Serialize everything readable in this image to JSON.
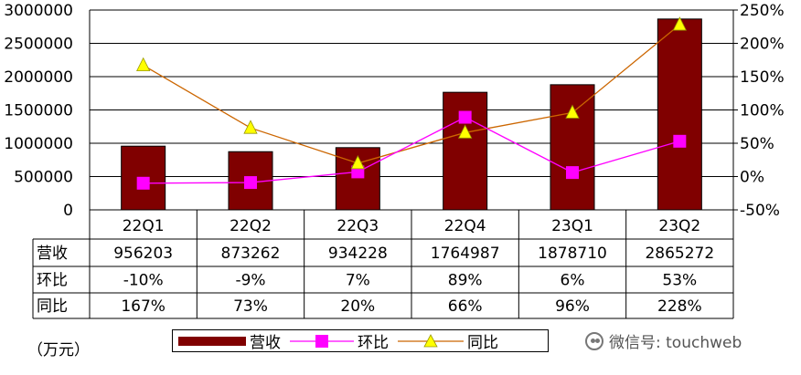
{
  "chart_data": {
    "type": "bar",
    "categories": [
      "22Q1",
      "22Q2",
      "22Q3",
      "22Q4",
      "23Q1",
      "23Q2"
    ],
    "series": [
      {
        "name": "营收",
        "type": "bar",
        "axis": "left",
        "values": [
          956203,
          873262,
          934228,
          1764987,
          1878710,
          2865272
        ],
        "color": "#800000"
      },
      {
        "name": "环比",
        "type": "line",
        "axis": "right",
        "values": [
          -10,
          -9,
          7,
          89,
          6,
          53
        ],
        "color": "#ff00ff",
        "marker": "square"
      },
      {
        "name": "同比",
        "type": "line",
        "axis": "right",
        "values": [
          167,
          73,
          20,
          66,
          96,
          228
        ],
        "color": "#cc6600",
        "marker": "triangle",
        "marker_color": "#ffff00"
      }
    ],
    "left_axis": {
      "ylim": [
        0,
        3000000
      ],
      "ticks": [
        "0",
        "500000",
        "1000000",
        "1500000",
        "2000000",
        "2500000",
        "3000000"
      ]
    },
    "right_axis": {
      "ylim": [
        -50,
        250
      ],
      "ticks": [
        "-50%",
        "0%",
        "50%",
        "100%",
        "150%",
        "200%",
        "250%"
      ]
    },
    "grid": true,
    "legend_position": "bottom",
    "table": {
      "rows": [
        {
          "label": "营收",
          "cells": [
            "956203",
            "873262",
            "934228",
            "1764987",
            "1878710",
            "2865272"
          ]
        },
        {
          "label": "环比",
          "cells": [
            "-10%",
            "-9%",
            "7%",
            "89%",
            "6%",
            "53%"
          ]
        },
        {
          "label": "同比",
          "cells": [
            "167%",
            "73%",
            "20%",
            "66%",
            "96%",
            "228%"
          ]
        }
      ]
    },
    "unit": "（万元）"
  },
  "legend": [
    {
      "label": "营收"
    },
    {
      "label": "环比"
    },
    {
      "label": "同比"
    }
  ],
  "watermark": "微信号: touchweb"
}
